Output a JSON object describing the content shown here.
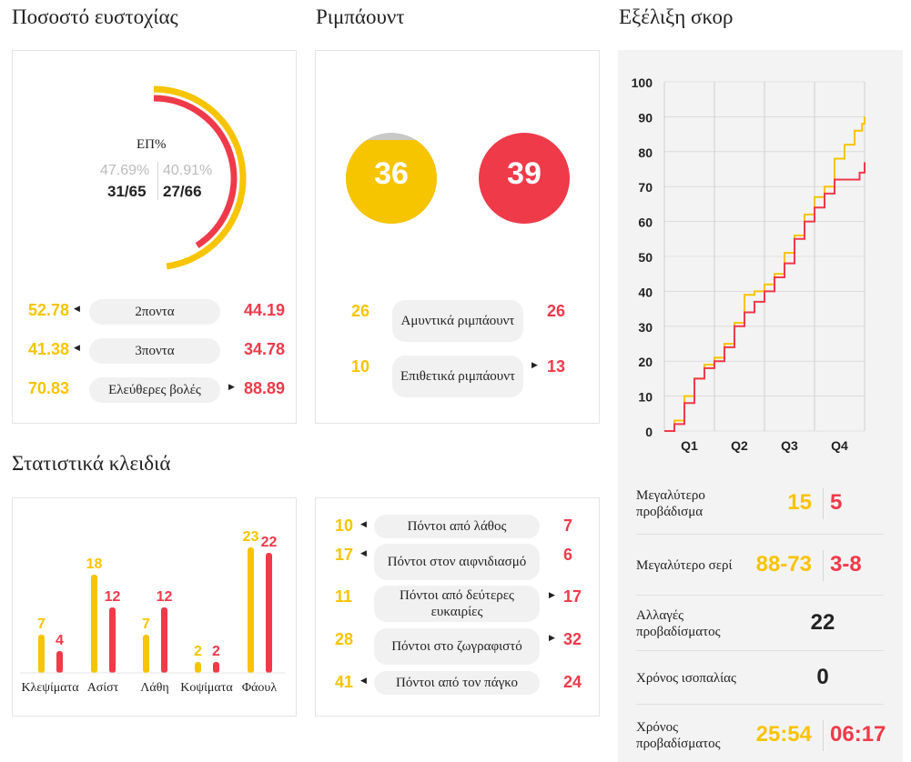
{
  "titles": {
    "shooting": "Ποσοστό ευστοχίας",
    "rebounds": "Ριμπάουντ",
    "score": "Εξέλιξη σκορ",
    "key": "Στατιστικά κλειδιά"
  },
  "shooting": {
    "label": "ΕΠ%",
    "home_pct": "47.69%",
    "away_pct": "40.91%",
    "home_made": "31/65",
    "away_made": "27/66",
    "home_pct_value": 47.69,
    "away_pct_value": 40.91,
    "rows": [
      {
        "home": "52.78",
        "label": "2ποντα",
        "away": "44.19",
        "arrow": "left"
      },
      {
        "home": "41.38",
        "label": "3ποντα",
        "away": "34.78",
        "arrow": "left"
      },
      {
        "home": "70.83",
        "label": "Ελεύθερες βολές",
        "away": "88.89",
        "arrow": "right"
      }
    ]
  },
  "rebounds": {
    "home_total": "36",
    "away_total": "39",
    "rows": [
      {
        "home": "26",
        "label": "Αμυντικά ριμπάουντ",
        "away": "26",
        "arrow": "none"
      },
      {
        "home": "10",
        "label": "Επιθετικά ριμπάουντ",
        "away": "13",
        "arrow": "right"
      }
    ]
  },
  "key_stats": [
    {
      "label": "Κλεψίματα",
      "home": 7,
      "away": 4
    },
    {
      "label": "Ασίστ",
      "home": 18,
      "away": 12
    },
    {
      "label": "Λάθη",
      "home": 7,
      "away": 12
    },
    {
      "label": "Κοψίματα",
      "home": 2,
      "away": 2
    },
    {
      "label": "Φάουλ",
      "home": 23,
      "away": 22
    }
  ],
  "points": [
    {
      "home": "10",
      "label": "Πόντοι από λάθος",
      "away": "7",
      "arrow": "left"
    },
    {
      "home": "17",
      "label": "Πόντοι στον αιφνιδιασμό",
      "away": "6",
      "arrow": "left"
    },
    {
      "home": "11",
      "label": "Πόντοι από δεύτερες ευκαιρίες",
      "away": "17",
      "arrow": "right"
    },
    {
      "home": "28",
      "label": "Πόντοι στο ζωγραφιστό",
      "away": "32",
      "arrow": "right"
    },
    {
      "home": "41",
      "label": "Πόντοι από τον πάγκο",
      "away": "24",
      "arrow": "left"
    }
  ],
  "chart_data": {
    "type": "line",
    "x_categories": [
      "Q1",
      "Q2",
      "Q3",
      "Q4"
    ],
    "y_ticks": [
      "0",
      "10",
      "20",
      "30",
      "40",
      "50",
      "60",
      "70",
      "80",
      "90",
      "100"
    ],
    "ylim": [
      0,
      100
    ],
    "xlim": [
      0,
      40
    ],
    "grid": true,
    "series": [
      {
        "color": "#f7c400",
        "points": [
          [
            0,
            0
          ],
          [
            2,
            3
          ],
          [
            4,
            10
          ],
          [
            6,
            15
          ],
          [
            8,
            19
          ],
          [
            10,
            21
          ],
          [
            12,
            25
          ],
          [
            14,
            31
          ],
          [
            16,
            39
          ],
          [
            18,
            40
          ],
          [
            20,
            42
          ],
          [
            22,
            45
          ],
          [
            24,
            51
          ],
          [
            26,
            56
          ],
          [
            28,
            62
          ],
          [
            30,
            67
          ],
          [
            32,
            70
          ],
          [
            34,
            78
          ],
          [
            36,
            82
          ],
          [
            38,
            86
          ],
          [
            39.5,
            88
          ],
          [
            40,
            90
          ]
        ]
      },
      {
        "color": "#ef3a4a",
        "points": [
          [
            0,
            0
          ],
          [
            2,
            2
          ],
          [
            4,
            8
          ],
          [
            6,
            15
          ],
          [
            8,
            18
          ],
          [
            10,
            20
          ],
          [
            12,
            24
          ],
          [
            14,
            30
          ],
          [
            16,
            34
          ],
          [
            18,
            37
          ],
          [
            20,
            40
          ],
          [
            22,
            44
          ],
          [
            24,
            48
          ],
          [
            26,
            55
          ],
          [
            28,
            60
          ],
          [
            30,
            64
          ],
          [
            32,
            68
          ],
          [
            34,
            72
          ],
          [
            36,
            72
          ],
          [
            38,
            72
          ],
          [
            39,
            74
          ],
          [
            40,
            77
          ]
        ]
      }
    ]
  },
  "score_stats": {
    "rows": [
      {
        "label": "Μεγαλύτερο προβάδισμα",
        "home": "15",
        "away": "5"
      },
      {
        "label": "Μεγαλύτερο σερί",
        "home": "88-73",
        "away": "3-8"
      },
      {
        "label": "Αλλαγές προβαδίσματος",
        "single": "22"
      },
      {
        "label": "Χρόνος ισοπαλίας",
        "single": "0"
      },
      {
        "label": "Χρόνος προβαδίσματος",
        "home": "25:54",
        "away": "06:17"
      }
    ]
  },
  "colors": {
    "home": "#f7c400",
    "away": "#ef3a4a",
    "grid": "#cfcfcf",
    "panel_bg": "#f3f3f3"
  }
}
